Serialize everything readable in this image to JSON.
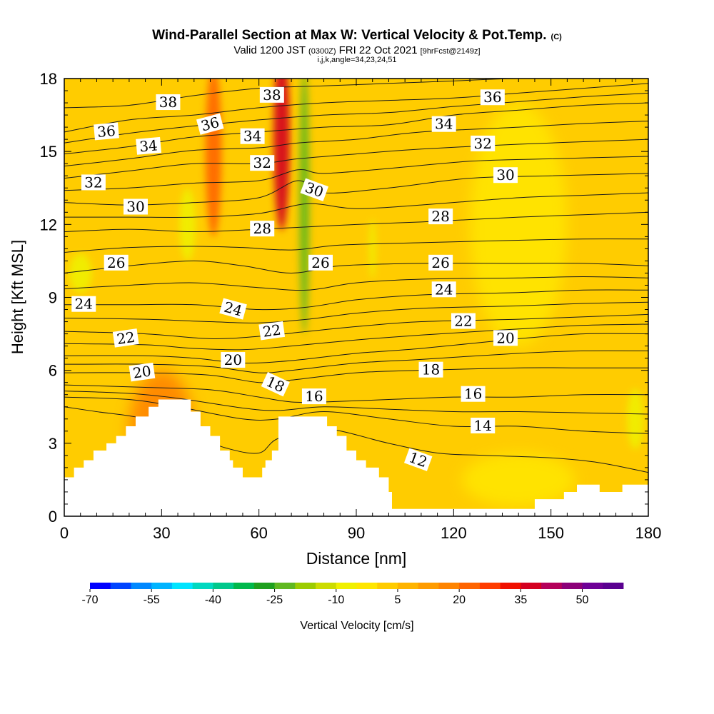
{
  "chart_data": {
    "type": "heatmap",
    "title": "Wind-Parallel Section at Max W: Vertical Velocity & Pot.Temp.",
    "title_mark": "(C)",
    "subtitle_main": "Valid 1200 JST",
    "subtitle_utc": "(0300Z)",
    "subtitle_date": "FRI 22 Oct 2021",
    "subtitle_fcst": "[9hrFcst@2149z]",
    "subtitle2": "i,j,k,angle=34,23,24,51",
    "xlabel": "Distance [nm]",
    "ylabel": "Height [Kft MSL]",
    "xlim": [
      0,
      180
    ],
    "ylim": [
      0,
      18
    ],
    "x_ticks": [
      "0",
      "30",
      "60",
      "90",
      "120",
      "150",
      "180"
    ],
    "y_ticks": [
      "0",
      "3",
      "6",
      "9",
      "12",
      "15",
      "18"
    ],
    "colorbar": {
      "label": "Vertical Velocity [cm/s]",
      "tick_labels": [
        "-70",
        "-55",
        "-40",
        "-25",
        "-10",
        "5",
        "20",
        "35",
        "50"
      ],
      "colors": [
        "#0000ff",
        "#0044ff",
        "#0088ff",
        "#00b4ff",
        "#00e4ff",
        "#00d8c0",
        "#00c88c",
        "#00b84c",
        "#1ea01e",
        "#60b820",
        "#9ccc00",
        "#ccdc00",
        "#f0f000",
        "#ffe600",
        "#ffcc00",
        "#ffb400",
        "#ff9c00",
        "#ff8400",
        "#ff6400",
        "#ff3c00",
        "#f01000",
        "#d40020",
        "#b4005a",
        "#8c0078",
        "#6e0096",
        "#5a0090"
      ]
    },
    "background_color": "#ffcc00",
    "velocity_features": [
      {
        "x": 67,
        "y": 15.5,
        "w": 5,
        "h": 7.5,
        "value": 35
      },
      {
        "x": 46,
        "y": 15.0,
        "w": 5,
        "h": 7.0,
        "value": 20
      },
      {
        "x": 74,
        "y": 13.0,
        "w": 3,
        "h": 11.0,
        "value": -25
      },
      {
        "x": 38,
        "y": 12.0,
        "w": 5,
        "h": 3.0,
        "value": -10
      },
      {
        "x": 5,
        "y": 10.0,
        "w": 7,
        "h": 1.6,
        "value": -10
      },
      {
        "x": 140,
        "y": 12.0,
        "w": 30,
        "h": 10.0,
        "value": -2
      },
      {
        "x": 95,
        "y": 11.0,
        "w": 2,
        "h": 2.5,
        "value": -10
      },
      {
        "x": 176,
        "y": 4.0,
        "w": 5,
        "h": 2.5,
        "value": -10
      },
      {
        "x": 30,
        "y": 3.5,
        "w": 20,
        "h": 5.0,
        "value": 15
      },
      {
        "x": 140,
        "y": 1.5,
        "w": 35,
        "h": 2.2,
        "value": -2
      }
    ],
    "terrain": [
      [
        0,
        1.6
      ],
      [
        3,
        1.6
      ],
      [
        3,
        2.0
      ],
      [
        6,
        2.0
      ],
      [
        6,
        2.3
      ],
      [
        9,
        2.3
      ],
      [
        9,
        2.7
      ],
      [
        13,
        2.7
      ],
      [
        13,
        3.0
      ],
      [
        16,
        3.0
      ],
      [
        16,
        3.3
      ],
      [
        19,
        3.3
      ],
      [
        19,
        3.7
      ],
      [
        22,
        3.7
      ],
      [
        22,
        4.1
      ],
      [
        26,
        4.1
      ],
      [
        26,
        4.5
      ],
      [
        29,
        4.5
      ],
      [
        29,
        4.8
      ],
      [
        39,
        4.8
      ],
      [
        39,
        4.3
      ],
      [
        42,
        4.3
      ],
      [
        42,
        3.7
      ],
      [
        45,
        3.7
      ],
      [
        45,
        3.3
      ],
      [
        48,
        3.3
      ],
      [
        48,
        2.7
      ],
      [
        51,
        2.7
      ],
      [
        51,
        2.3
      ],
      [
        52,
        2.3
      ],
      [
        52,
        2.0
      ],
      [
        55,
        2.0
      ],
      [
        55,
        1.6
      ],
      [
        61,
        1.6
      ],
      [
        61,
        2.0
      ],
      [
        62,
        2.0
      ],
      [
        62,
        2.3
      ],
      [
        64,
        2.3
      ],
      [
        64,
        2.7
      ],
      [
        66,
        2.7
      ],
      [
        66,
        4.1
      ],
      [
        81,
        4.1
      ],
      [
        81,
        3.7
      ],
      [
        84,
        3.7
      ],
      [
        84,
        3.3
      ],
      [
        87,
        3.3
      ],
      [
        87,
        2.7
      ],
      [
        90,
        2.7
      ],
      [
        90,
        2.3
      ],
      [
        93,
        2.3
      ],
      [
        93,
        2.0
      ],
      [
        97,
        2.0
      ],
      [
        97,
        1.6
      ],
      [
        100,
        1.6
      ],
      [
        100,
        1.0
      ],
      [
        101,
        1.0
      ],
      [
        101,
        0.3
      ],
      [
        145,
        0.3
      ],
      [
        145,
        0.7
      ],
      [
        154,
        0.7
      ],
      [
        154,
        1.0
      ],
      [
        158,
        1.0
      ],
      [
        158,
        1.3
      ],
      [
        165,
        1.3
      ],
      [
        165,
        1.0
      ],
      [
        172,
        1.0
      ],
      [
        172,
        1.3
      ],
      [
        180,
        1.3
      ],
      [
        180,
        0
      ],
      [
        0,
        0
      ]
    ],
    "isentropes": [
      {
        "theta": 12,
        "label": "12",
        "pts": [
          [
            0,
            4.5
          ],
          [
            10,
            4.3
          ],
          [
            25,
            4.0
          ],
          [
            40,
            3.3
          ],
          [
            50,
            2.8
          ],
          [
            60,
            2.6
          ],
          [
            66,
            3.2
          ],
          [
            80,
            3.6
          ],
          [
            100,
            3.0
          ],
          [
            115,
            2.6
          ],
          [
            130,
            2.5
          ],
          [
            150,
            2.4
          ],
          [
            165,
            2.2
          ],
          [
            180,
            1.8
          ]
        ]
      },
      {
        "theta": 14,
        "label": "14",
        "pts": [
          [
            0,
            4.9
          ],
          [
            20,
            4.8
          ],
          [
            35,
            4.5
          ],
          [
            55,
            4.0
          ],
          [
            66,
            4.0
          ],
          [
            80,
            4.3
          ],
          [
            100,
            4.0
          ],
          [
            120,
            3.7
          ],
          [
            140,
            3.7
          ],
          [
            160,
            3.5
          ],
          [
            180,
            3.4
          ]
        ]
      },
      {
        "theta": 16,
        "label": "16",
        "pts": [
          [
            0,
            5.4
          ],
          [
            25,
            5.3
          ],
          [
            45,
            5.2
          ],
          [
            60,
            4.9
          ],
          [
            70,
            4.7
          ],
          [
            80,
            4.7
          ],
          [
            100,
            4.8
          ],
          [
            120,
            4.9
          ],
          [
            140,
            4.9
          ],
          [
            160,
            5.0
          ],
          [
            180,
            5.0
          ]
        ]
      },
      {
        "theta": 18,
        "label": "18",
        "pts": [
          [
            0,
            5.9
          ],
          [
            25,
            5.9
          ],
          [
            45,
            5.8
          ],
          [
            60,
            5.5
          ],
          [
            70,
            5.6
          ],
          [
            90,
            5.9
          ],
          [
            110,
            6.0
          ],
          [
            140,
            6.1
          ],
          [
            160,
            6.1
          ],
          [
            180,
            6.1
          ]
        ]
      },
      {
        "theta": 20,
        "label": "20",
        "pts": [
          [
            0,
            6.6
          ],
          [
            25,
            6.6
          ],
          [
            40,
            6.5
          ],
          [
            55,
            6.3
          ],
          [
            70,
            6.4
          ],
          [
            90,
            6.7
          ],
          [
            110,
            6.9
          ],
          [
            140,
            7.3
          ],
          [
            160,
            7.5
          ],
          [
            180,
            7.5
          ]
        ]
      },
      {
        "theta": 22,
        "label": "22",
        "pts": [
          [
            0,
            7.6
          ],
          [
            25,
            7.5
          ],
          [
            45,
            7.3
          ],
          [
            60,
            7.4
          ],
          [
            75,
            7.6
          ],
          [
            90,
            7.8
          ],
          [
            110,
            8.0
          ],
          [
            140,
            8.1
          ],
          [
            160,
            8.2
          ],
          [
            180,
            8.3
          ]
        ]
      },
      {
        "theta": 24,
        "label": "24",
        "pts": [
          [
            0,
            8.7
          ],
          [
            20,
            8.7
          ],
          [
            40,
            8.7
          ],
          [
            60,
            8.5
          ],
          [
            75,
            8.6
          ],
          [
            90,
            8.9
          ],
          [
            110,
            9.1
          ],
          [
            140,
            9.2
          ],
          [
            160,
            9.3
          ],
          [
            180,
            9.3
          ]
        ]
      },
      {
        "theta": 26,
        "label": "26",
        "pts": [
          [
            0,
            10.0
          ],
          [
            20,
            10.3
          ],
          [
            40,
            10.5
          ],
          [
            55,
            10.3
          ],
          [
            70,
            10.0
          ],
          [
            85,
            10.3
          ],
          [
            110,
            10.4
          ],
          [
            140,
            10.4
          ],
          [
            160,
            10.4
          ],
          [
            180,
            10.3
          ]
        ]
      },
      {
        "theta": 28,
        "label": "28",
        "pts": [
          [
            0,
            11.7
          ],
          [
            20,
            11.8
          ],
          [
            40,
            11.7
          ],
          [
            60,
            11.8
          ],
          [
            75,
            11.9
          ],
          [
            90,
            12.0
          ],
          [
            110,
            12.1
          ],
          [
            140,
            12.3
          ],
          [
            160,
            12.4
          ],
          [
            180,
            12.5
          ]
        ]
      },
      {
        "theta": 30,
        "label": "30",
        "pts": [
          [
            0,
            12.9
          ],
          [
            20,
            12.8
          ],
          [
            40,
            12.9
          ],
          [
            60,
            13.1
          ],
          [
            72,
            13.8
          ],
          [
            80,
            13.3
          ],
          [
            100,
            13.5
          ],
          [
            125,
            13.9
          ],
          [
            150,
            14.0
          ],
          [
            180,
            14.1
          ]
        ]
      },
      {
        "theta": 32,
        "label": "32",
        "pts": [
          [
            0,
            13.9
          ],
          [
            20,
            14.2
          ],
          [
            40,
            14.5
          ],
          [
            60,
            14.5
          ],
          [
            72,
            14.7
          ],
          [
            90,
            14.9
          ],
          [
            110,
            15.1
          ],
          [
            140,
            15.3
          ],
          [
            160,
            15.4
          ],
          [
            180,
            15.5
          ]
        ]
      },
      {
        "theta": 34,
        "label": "34",
        "pts": [
          [
            0,
            14.9
          ],
          [
            20,
            15.2
          ],
          [
            40,
            15.6
          ],
          [
            60,
            15.8
          ],
          [
            80,
            16.0
          ],
          [
            100,
            16.1
          ],
          [
            120,
            16.5
          ],
          [
            140,
            16.7
          ],
          [
            160,
            16.9
          ],
          [
            180,
            17.0
          ]
        ]
      },
      {
        "theta": 36,
        "label": "36",
        "pts": [
          [
            0,
            15.8
          ],
          [
            20,
            16.3
          ],
          [
            40,
            16.5
          ],
          [
            60,
            16.8
          ],
          [
            80,
            17.0
          ],
          [
            100,
            17.1
          ],
          [
            120,
            17.2
          ],
          [
            140,
            17.4
          ],
          [
            160,
            17.6
          ],
          [
            180,
            17.8
          ]
        ]
      },
      {
        "theta": 38,
        "label": "38",
        "pts": [
          [
            0,
            16.8
          ],
          [
            20,
            16.9
          ],
          [
            40,
            17.3
          ],
          [
            60,
            17.6
          ],
          [
            80,
            17.7
          ],
          [
            100,
            17.8
          ],
          [
            120,
            17.9
          ],
          [
            140,
            18.0
          ],
          [
            180,
            18.0
          ]
        ]
      }
    ],
    "contour_labels": [
      {
        "text": "38",
        "x": 32,
        "y": 17.0,
        "angle": 0
      },
      {
        "text": "38",
        "x": 64,
        "y": 17.3,
        "angle": 0
      },
      {
        "text": "36",
        "x": 132,
        "y": 17.2,
        "angle": 0
      },
      {
        "text": "36",
        "x": 13,
        "y": 15.8,
        "angle": -5
      },
      {
        "text": "36",
        "x": 45,
        "y": 16.1,
        "angle": -15
      },
      {
        "text": "34",
        "x": 58,
        "y": 15.6,
        "angle": 0
      },
      {
        "text": "34",
        "x": 117,
        "y": 16.1,
        "angle": 0
      },
      {
        "text": "34",
        "x": 26,
        "y": 15.2,
        "angle": -5
      },
      {
        "text": "32",
        "x": 61,
        "y": 14.5,
        "angle": 0
      },
      {
        "text": "32",
        "x": 129,
        "y": 15.3,
        "angle": 0
      },
      {
        "text": "32",
        "x": 9,
        "y": 13.7,
        "angle": 0
      },
      {
        "text": "30",
        "x": 77,
        "y": 13.4,
        "angle": 20
      },
      {
        "text": "30",
        "x": 136,
        "y": 14.0,
        "angle": 0
      },
      {
        "text": "30",
        "x": 22,
        "y": 12.7,
        "angle": 0
      },
      {
        "text": "28",
        "x": 61,
        "y": 11.8,
        "angle": 0
      },
      {
        "text": "28",
        "x": 116,
        "y": 12.3,
        "angle": 0
      },
      {
        "text": "26",
        "x": 16,
        "y": 10.4,
        "angle": 0
      },
      {
        "text": "26",
        "x": 79,
        "y": 10.4,
        "angle": 0
      },
      {
        "text": "26",
        "x": 116,
        "y": 10.4,
        "angle": 0
      },
      {
        "text": "24",
        "x": 117,
        "y": 9.3,
        "angle": 0
      },
      {
        "text": "24",
        "x": 6,
        "y": 8.7,
        "angle": 0
      },
      {
        "text": "24",
        "x": 52,
        "y": 8.5,
        "angle": 15
      },
      {
        "text": "22",
        "x": 123,
        "y": 8.0,
        "angle": 0
      },
      {
        "text": "22",
        "x": 19,
        "y": 7.3,
        "angle": -8
      },
      {
        "text": "22",
        "x": 64,
        "y": 7.6,
        "angle": -8
      },
      {
        "text": "20",
        "x": 136,
        "y": 7.3,
        "angle": 0
      },
      {
        "text": "20",
        "x": 52,
        "y": 6.4,
        "angle": 0
      },
      {
        "text": "20",
        "x": 24,
        "y": 5.9,
        "angle": -8
      },
      {
        "text": "18",
        "x": 113,
        "y": 6.0,
        "angle": 0
      },
      {
        "text": "18",
        "x": 65,
        "y": 5.4,
        "angle": 25
      },
      {
        "text": "16",
        "x": 77,
        "y": 4.9,
        "angle": 0
      },
      {
        "text": "16",
        "x": 126,
        "y": 5.0,
        "angle": 0
      },
      {
        "text": "14",
        "x": 129,
        "y": 3.7,
        "angle": 0
      },
      {
        "text": "12",
        "x": 109,
        "y": 2.3,
        "angle": 20
      }
    ]
  }
}
